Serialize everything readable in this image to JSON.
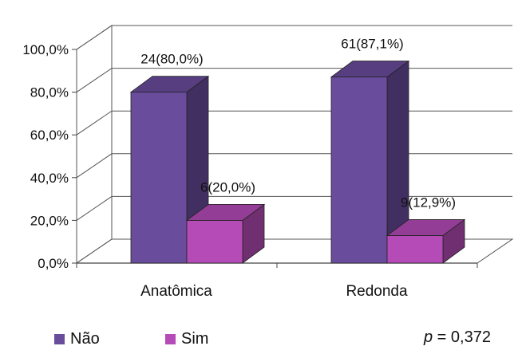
{
  "chart_data": {
    "type": "bar",
    "categories": [
      "Anatômica",
      "Redonda"
    ],
    "series": [
      {
        "name": "Não",
        "values": [
          80.0,
          87.1
        ],
        "labels": [
          "24(80,0%)",
          "61(87,1%)"
        ],
        "color": "#6a4c9c"
      },
      {
        "name": "Sim",
        "values": [
          20.0,
          12.9
        ],
        "labels": [
          "6(20,0%)",
          "9(12,9%)"
        ],
        "color": "#b54bb7"
      }
    ],
    "yticks": [
      "0,0%",
      "20,0%",
      "40,0%",
      "60,0%",
      "80,0%",
      "100,0%"
    ],
    "ylim": [
      0,
      100
    ],
    "grid": true,
    "legend_position": "bottom-left",
    "annotation": {
      "symbol": "p",
      "text": " = 0,372"
    }
  }
}
